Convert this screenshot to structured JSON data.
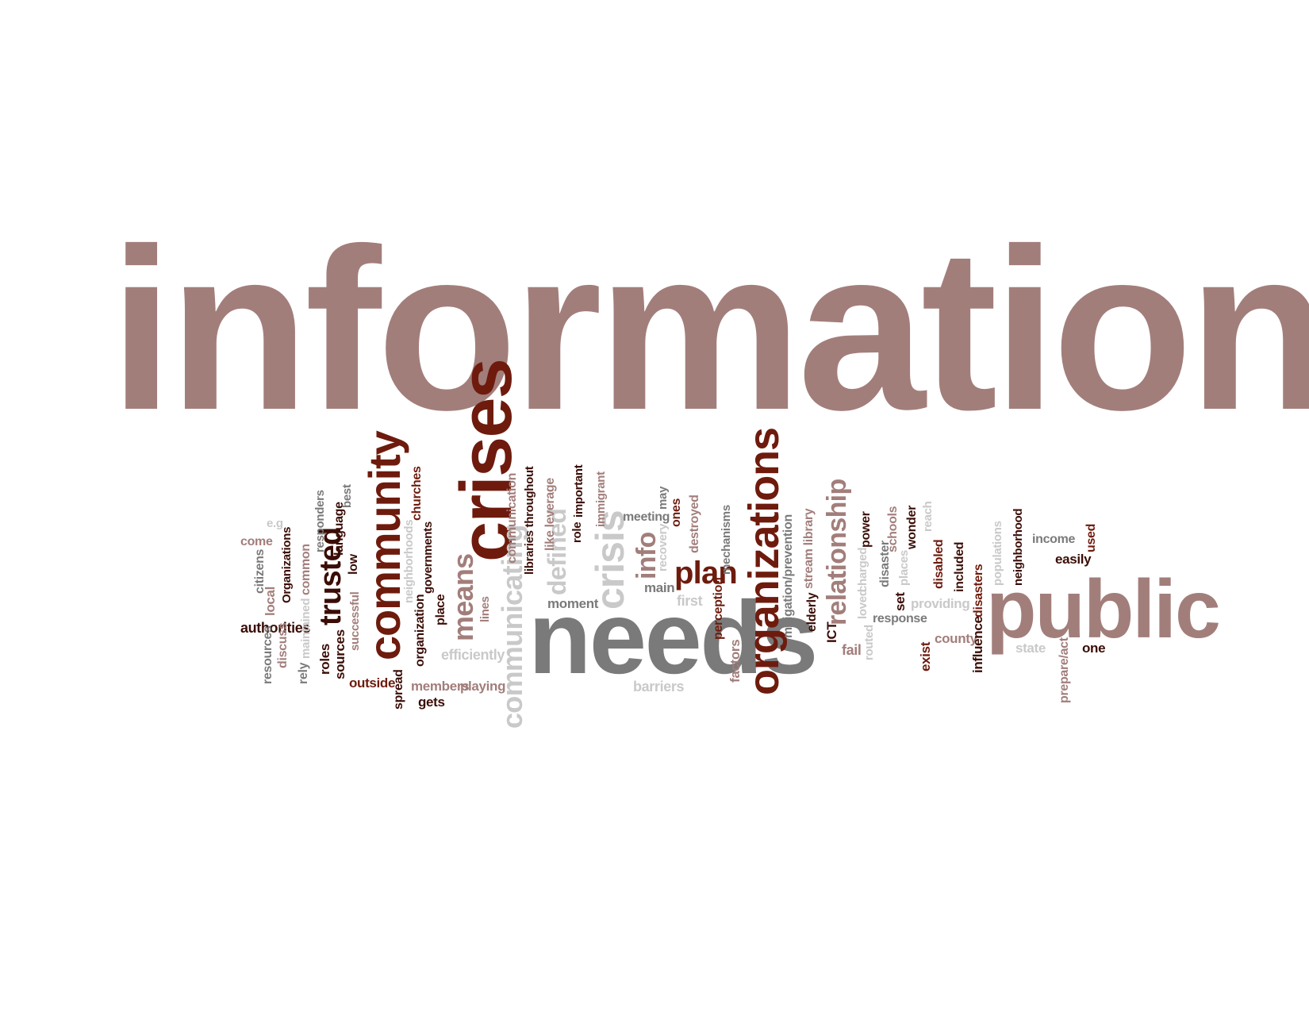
{
  "colors": {
    "rose": "#a27e7b",
    "maroon": "#6e1b0d",
    "dark": "#3a0d06",
    "gray": "#7a7a7a",
    "light": "#c9c9c9",
    "pinkgray": "#b39a98"
  },
  "words": [
    {
      "text": "information",
      "color": "#a27e7b",
      "dir": "h"
    },
    {
      "text": "crises",
      "color": "#6e1b0d",
      "dir": "v"
    },
    {
      "text": "community",
      "color": "#6e1b0d",
      "dir": "v"
    },
    {
      "text": "needs",
      "color": "#7a7a7a",
      "dir": "h"
    },
    {
      "text": "public",
      "color": "#a27e7b",
      "dir": "h"
    },
    {
      "text": "organizations",
      "color": "#6e1b0d",
      "dir": "v"
    },
    {
      "text": "crisis",
      "color": "#c9c9c9",
      "dir": "v"
    },
    {
      "text": "communicating",
      "color": "#c9c9c9",
      "dir": "v"
    },
    {
      "text": "trusted",
      "color": "#3a0d06",
      "dir": "v"
    },
    {
      "text": "means",
      "color": "#a27e7b",
      "dir": "v"
    },
    {
      "text": "relationship",
      "color": "#a27e7b",
      "dir": "v"
    },
    {
      "text": "plan",
      "color": "#6e1b0d",
      "dir": "h"
    },
    {
      "text": "info",
      "color": "#a27e7b",
      "dir": "v"
    },
    {
      "text": "defined",
      "color": "#c9c9c9",
      "dir": "v"
    },
    {
      "text": "authorities",
      "color": "#3a0d06",
      "dir": "h"
    },
    {
      "text": "outside",
      "color": "#6e1b0d",
      "dir": "h"
    },
    {
      "text": "efficiently",
      "color": "#c9c9c9",
      "dir": "h"
    },
    {
      "text": "members",
      "color": "#a27e7b",
      "dir": "h"
    },
    {
      "text": "playing",
      "color": "#a27e7b",
      "dir": "h"
    },
    {
      "text": "gets",
      "color": "#3a0d06",
      "dir": "h"
    },
    {
      "text": "moment",
      "color": "#7a7a7a",
      "dir": "h"
    },
    {
      "text": "meeting",
      "color": "#7a7a7a",
      "dir": "h"
    },
    {
      "text": "main",
      "color": "#7a7a7a",
      "dir": "h"
    },
    {
      "text": "first",
      "color": "#c9c9c9",
      "dir": "h"
    },
    {
      "text": "barriers",
      "color": "#c9c9c9",
      "dir": "h"
    },
    {
      "text": "response",
      "color": "#7a7a7a",
      "dir": "h"
    },
    {
      "text": "providing",
      "color": "#c9c9c9",
      "dir": "h"
    },
    {
      "text": "county",
      "color": "#a27e7b",
      "dir": "h"
    },
    {
      "text": "fail",
      "color": "#a27e7b",
      "dir": "h"
    },
    {
      "text": "state",
      "color": "#c9c9c9",
      "dir": "h"
    },
    {
      "text": "one",
      "color": "#3a0d06",
      "dir": "h"
    },
    {
      "text": "income",
      "color": "#7a7a7a",
      "dir": "h"
    },
    {
      "text": "easily",
      "color": "#3a0d06",
      "dir": "h"
    },
    {
      "text": "come",
      "color": "#a27e7b",
      "dir": "h"
    },
    {
      "text": "e.g",
      "color": "#c9c9c9",
      "dir": "h"
    },
    {
      "text": "resources",
      "color": "#7a7a7a",
      "dir": "v"
    },
    {
      "text": "citizens",
      "color": "#7a7a7a",
      "dir": "v"
    },
    {
      "text": "discuss",
      "color": "#a27e7b",
      "dir": "v"
    },
    {
      "text": "local",
      "color": "#a27e7b",
      "dir": "v"
    },
    {
      "text": "Organizations",
      "color": "#3a0d06",
      "dir": "v"
    },
    {
      "text": "rely",
      "color": "#7a7a7a",
      "dir": "v"
    },
    {
      "text": "maintained",
      "color": "#c9c9c9",
      "dir": "v"
    },
    {
      "text": "common",
      "color": "#a27e7b",
      "dir": "v"
    },
    {
      "text": "roles",
      "color": "#3a0d06",
      "dir": "v"
    },
    {
      "text": "responders",
      "color": "#7a7a7a",
      "dir": "v"
    },
    {
      "text": "sources",
      "color": "#3a0d06",
      "dir": "v"
    },
    {
      "text": "language",
      "color": "#3a0d06",
      "dir": "v"
    },
    {
      "text": "successful",
      "color": "#a27e7b",
      "dir": "v"
    },
    {
      "text": "low",
      "color": "#3a0d06",
      "dir": "v"
    },
    {
      "text": "best",
      "color": "#7a7a7a",
      "dir": "v"
    },
    {
      "text": "spread",
      "color": "#3a0d06",
      "dir": "v"
    },
    {
      "text": "neighborhoods",
      "color": "#c9c9c9",
      "dir": "v"
    },
    {
      "text": "organization",
      "color": "#3a0d06",
      "dir": "v"
    },
    {
      "text": "governments",
      "color": "#3a0d06",
      "dir": "v"
    },
    {
      "text": "churches",
      "color": "#6e1b0d",
      "dir": "v"
    },
    {
      "text": "place",
      "color": "#3a0d06",
      "dir": "v"
    },
    {
      "text": "lines",
      "color": "#a27e7b",
      "dir": "v"
    },
    {
      "text": "communication",
      "color": "#a27e7b",
      "dir": "v"
    },
    {
      "text": "libraries throughout",
      "color": "#3a0d06",
      "dir": "v"
    },
    {
      "text": "like leverage",
      "color": "#a27e7b",
      "dir": "v"
    },
    {
      "text": "role",
      "color": "#3a0d06",
      "dir": "v"
    },
    {
      "text": "important",
      "color": "#3a0d06",
      "dir": "v"
    },
    {
      "text": "immigrant",
      "color": "#a27e7b",
      "dir": "v"
    },
    {
      "text": "recovery",
      "color": "#c9c9c9",
      "dir": "v"
    },
    {
      "text": "may",
      "color": "#7a7a7a",
      "dir": "v"
    },
    {
      "text": "ones",
      "color": "#6e1b0d",
      "dir": "v"
    },
    {
      "text": "destroyed",
      "color": "#a27e7b",
      "dir": "v"
    },
    {
      "text": "perception",
      "color": "#6e1b0d",
      "dir": "v"
    },
    {
      "text": "mechanisms",
      "color": "#7a7a7a",
      "dir": "v"
    },
    {
      "text": "factors",
      "color": "#a27e7b",
      "dir": "v"
    },
    {
      "text": "mitigation/prevention",
      "color": "#7a7a7a",
      "dir": "v"
    },
    {
      "text": "elderly",
      "color": "#3a0d06",
      "dir": "v"
    },
    {
      "text": "stream library",
      "color": "#a27e7b",
      "dir": "v"
    },
    {
      "text": "ICT",
      "color": "#3a0d06",
      "dir": "v"
    },
    {
      "text": "loved",
      "color": "#c9c9c9",
      "dir": "v"
    },
    {
      "text": "charged",
      "color": "#c9c9c9",
      "dir": "v"
    },
    {
      "text": "routed",
      "color": "#c9c9c9",
      "dir": "v"
    },
    {
      "text": "power",
      "color": "#3a0d06",
      "dir": "v"
    },
    {
      "text": "disaster",
      "color": "#7a7a7a",
      "dir": "v"
    },
    {
      "text": "set",
      "color": "#3a0d06",
      "dir": "v"
    },
    {
      "text": "schools",
      "color": "#a27e7b",
      "dir": "v"
    },
    {
      "text": "places",
      "color": "#c9c9c9",
      "dir": "v"
    },
    {
      "text": "wonder",
      "color": "#3a0d06",
      "dir": "v"
    },
    {
      "text": "reach",
      "color": "#c9c9c9",
      "dir": "v"
    },
    {
      "text": "exist",
      "color": "#6e1b0d",
      "dir": "v"
    },
    {
      "text": "disabled",
      "color": "#6e1b0d",
      "dir": "v"
    },
    {
      "text": "included",
      "color": "#3a0d06",
      "dir": "v"
    },
    {
      "text": "influence",
      "color": "#3a0d06",
      "dir": "v"
    },
    {
      "text": "disasters",
      "color": "#6e1b0d",
      "dir": "v"
    },
    {
      "text": "populations",
      "color": "#c9c9c9",
      "dir": "v"
    },
    {
      "text": "neighborhood",
      "color": "#3a0d06",
      "dir": "v"
    },
    {
      "text": "prepare/act",
      "color": "#a27e7b",
      "dir": "v"
    },
    {
      "text": "used",
      "color": "#6e1b0d",
      "dir": "v"
    }
  ]
}
